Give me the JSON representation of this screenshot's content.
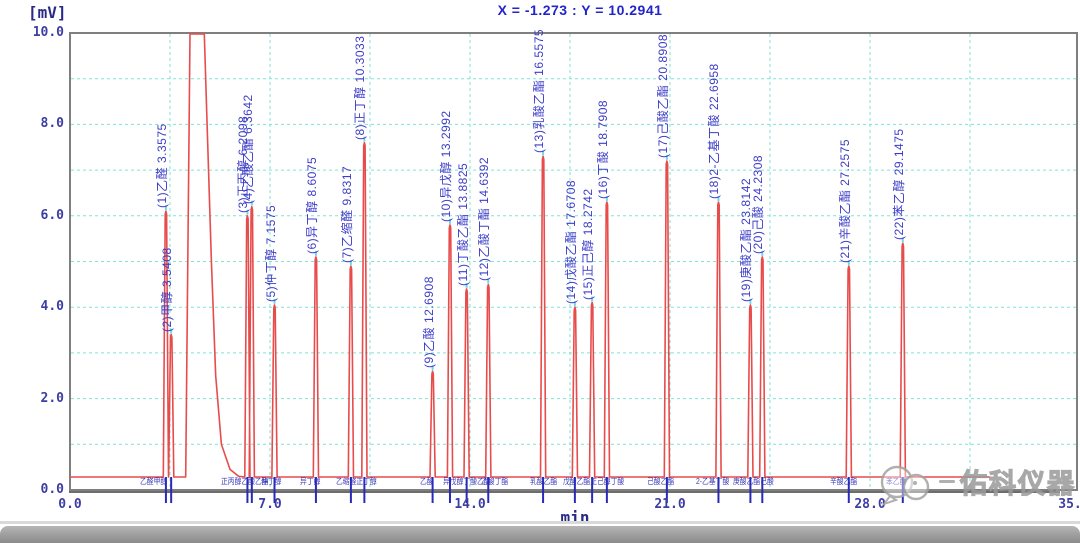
{
  "header": {
    "cursor_readout": "X = -1.273 : Y = 10.2941"
  },
  "axes": {
    "y_unit": "[mV]",
    "x_unit": "min"
  },
  "watermark": {
    "text": "佑科仪器"
  },
  "colors": {
    "trace": "#e84b4b",
    "grid": "#7fe3d5",
    "frame": "#7f7f7f",
    "peak_label": "#3c3cc8",
    "axis_text": "#3d3da2",
    "header_text": "#2424cc",
    "integration_mark": "#2a2ab8",
    "apex_mark": "#74d8e8",
    "watermark_gray": "#9a9a9a"
  },
  "chart_data": {
    "type": "line",
    "title": "",
    "xlabel": "min",
    "ylabel": "[mV]",
    "xlim": [
      0.0,
      35.25
    ],
    "ylim": [
      0.0,
      10.0
    ],
    "grid": {
      "visible": true,
      "style": "dashed",
      "h_step_mv": 1.0,
      "v_step_min": 3.5
    },
    "y_ticks": [
      {
        "label": "0.0",
        "value": 0.0
      },
      {
        "label": "2.0",
        "value": 2.0
      },
      {
        "label": "4.0",
        "value": 4.0
      },
      {
        "label": "6.0",
        "value": 6.0
      },
      {
        "label": "8.0",
        "value": 8.0
      },
      {
        "label": "10.0",
        "value": 10.0
      }
    ],
    "x_ticks": [
      {
        "label": "0.0",
        "value": 0.0
      },
      {
        "label": "7.0",
        "value": 7.0
      },
      {
        "label": "14.0",
        "value": 14.0
      },
      {
        "label": "21.0",
        "value": 21.0
      },
      {
        "label": "28.0",
        "value": 28.0
      },
      {
        "label": "35.",
        "value": 35.0
      }
    ],
    "baseline_mv": 0.28,
    "trace_end_min": 32.2,
    "solvent_peak": {
      "labeled": false,
      "clipped_at_mv": 10.0,
      "rise_min": 4.05,
      "flat_start_min": 4.2,
      "flat_end_min": 4.7,
      "tail": [
        [
          4.8,
          8.0
        ],
        [
          4.95,
          5.0
        ],
        [
          5.1,
          2.5
        ],
        [
          5.3,
          1.0
        ],
        [
          5.6,
          0.45
        ],
        [
          5.9,
          0.3
        ]
      ]
    },
    "peaks": [
      {
        "n": 1,
        "name": "乙醛",
        "rt": 3.3575,
        "height_mv": 6.1,
        "label": "(1)乙醛 3.3575"
      },
      {
        "n": 2,
        "name": "甲醇",
        "rt": 3.5408,
        "height_mv": 3.4,
        "label": "(2)甲醇 3.5408"
      },
      {
        "n": 3,
        "name": "正丙醇",
        "rt": 6.2098,
        "height_mv": 6.0,
        "label": "(3)正丙醇 6.2098"
      },
      {
        "n": 4,
        "name": "乙酸乙酯",
        "rt": 6.3642,
        "height_mv": 6.2,
        "label": "(4)乙酸乙酯 6.3642"
      },
      {
        "n": 5,
        "name": "仲丁醇",
        "rt": 7.1575,
        "height_mv": 4.05,
        "label": "(5)仲丁醇 7.1575"
      },
      {
        "n": 6,
        "name": "异丁醇",
        "rt": 8.6075,
        "height_mv": 5.1,
        "label": "(6)异丁醇 8.6075"
      },
      {
        "n": 7,
        "name": "乙缩醛",
        "rt": 9.8317,
        "height_mv": 4.9,
        "label": "(7)乙缩醛 9.8317"
      },
      {
        "n": 8,
        "name": "正丁醇",
        "rt": 10.3033,
        "height_mv": 7.6,
        "label": "(8)正丁醇 10.3033"
      },
      {
        "n": 9,
        "name": "乙酸",
        "rt": 12.6908,
        "height_mv": 2.6,
        "label": "(9)乙酸 12.6908"
      },
      {
        "n": 10,
        "name": "异戊醇",
        "rt": 13.2992,
        "height_mv": 5.8,
        "label": "(10)异戊醇 13.2992"
      },
      {
        "n": 11,
        "name": "丁酸乙酯",
        "rt": 13.8825,
        "height_mv": 4.4,
        "label": "(11)丁酸乙酯 13.8825"
      },
      {
        "n": 12,
        "name": "乙酸丁酯",
        "rt": 14.6392,
        "height_mv": 4.5,
        "label": "(12)乙酸丁酯 14.6392"
      },
      {
        "n": 13,
        "name": "乳酸乙酯",
        "rt": 16.5575,
        "height_mv": 7.3,
        "label": "(13)乳酸乙酯 16.5575"
      },
      {
        "n": 14,
        "name": "戊酸乙酯",
        "rt": 17.6708,
        "height_mv": 4.0,
        "label": "(14)戊酸乙酯 17.6708"
      },
      {
        "n": 15,
        "name": "正己醇",
        "rt": 18.2742,
        "height_mv": 4.1,
        "label": "(15)正己醇 18.2742"
      },
      {
        "n": 16,
        "name": "丁酸",
        "rt": 18.7908,
        "height_mv": 6.3,
        "label": "(16)丁酸 18.7908"
      },
      {
        "n": 17,
        "name": "己酸乙酯",
        "rt": 20.8908,
        "height_mv": 7.2,
        "label": "(17)己酸乙酯 20.8908"
      },
      {
        "n": 18,
        "name": "2-乙基丁酸",
        "rt": 22.6958,
        "height_mv": 6.3,
        "label": "(18)2-乙基丁酸 22.6958"
      },
      {
        "n": 19,
        "name": "庚酸乙酯",
        "rt": 23.8142,
        "height_mv": 4.05,
        "label": "(19)庚酸乙酯 23.8142"
      },
      {
        "n": 20,
        "name": "己酸",
        "rt": 24.2308,
        "height_mv": 5.1,
        "label": "(20)己酸 24.2308"
      },
      {
        "n": 21,
        "name": "辛酸乙酯",
        "rt": 27.2575,
        "height_mv": 4.9,
        "label": "(21)辛酸乙酯 27.2575"
      },
      {
        "n": 22,
        "name": "苯乙醇",
        "rt": 29.1475,
        "height_mv": 5.4,
        "label": "(22)苯乙醇 29.1475"
      }
    ],
    "baseline_annotations": [
      {
        "min": 2.45,
        "text": "乙醛甲醇"
      },
      {
        "min": 5.3,
        "text": "正丙醇乙酸乙酯"
      },
      {
        "min": 6.7,
        "text": "仲丁醇"
      },
      {
        "min": 8.05,
        "text": "异丁醇"
      },
      {
        "min": 9.3,
        "text": "乙缩醛正丁醇"
      },
      {
        "min": 12.25,
        "text": "乙酸"
      },
      {
        "min": 13.05,
        "text": "异戊醇丁酸乙酯"
      },
      {
        "min": 14.4,
        "text": "乙酸丁酯"
      },
      {
        "min": 16.1,
        "text": "乳酸乙酯"
      },
      {
        "min": 17.25,
        "text": "戊酸乙酯正己醇丁酸"
      },
      {
        "min": 20.2,
        "text": "己酸乙酯"
      },
      {
        "min": 21.9,
        "text": "2-乙基丁酸"
      },
      {
        "min": 23.2,
        "text": "庚酸乙酯己酸"
      },
      {
        "min": 26.6,
        "text": "辛酸乙酯"
      },
      {
        "min": 28.55,
        "text": "苯乙醇"
      }
    ]
  }
}
